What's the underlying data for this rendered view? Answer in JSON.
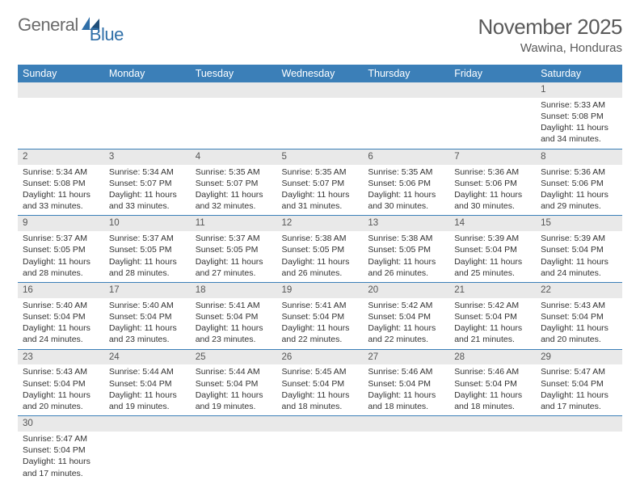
{
  "logo": {
    "general": "General",
    "blue": "Blue"
  },
  "title": "November 2025",
  "subtitle": "Wawina, Honduras",
  "colors": {
    "header_bg": "#3b7fb8",
    "header_text": "#ffffff",
    "daynum_bg": "#e9e9e9",
    "border": "#3b7fb8",
    "title_color": "#5a5a5a",
    "logo_gray": "#6b6b6b",
    "logo_blue": "#2f6fa8"
  },
  "typography": {
    "title_fontsize": 26,
    "subtitle_fontsize": 15,
    "header_fontsize": 12.5,
    "daynum_fontsize": 11.5,
    "cell_fontsize": 10.5
  },
  "weekdays": [
    "Sunday",
    "Monday",
    "Tuesday",
    "Wednesday",
    "Thursday",
    "Friday",
    "Saturday"
  ],
  "weeks": [
    [
      null,
      null,
      null,
      null,
      null,
      null,
      {
        "n": "1",
        "sunrise": "Sunrise: 5:33 AM",
        "sunset": "Sunset: 5:08 PM",
        "day1": "Daylight: 11 hours",
        "day2": "and 34 minutes."
      }
    ],
    [
      {
        "n": "2",
        "sunrise": "Sunrise: 5:34 AM",
        "sunset": "Sunset: 5:08 PM",
        "day1": "Daylight: 11 hours",
        "day2": "and 33 minutes."
      },
      {
        "n": "3",
        "sunrise": "Sunrise: 5:34 AM",
        "sunset": "Sunset: 5:07 PM",
        "day1": "Daylight: 11 hours",
        "day2": "and 33 minutes."
      },
      {
        "n": "4",
        "sunrise": "Sunrise: 5:35 AM",
        "sunset": "Sunset: 5:07 PM",
        "day1": "Daylight: 11 hours",
        "day2": "and 32 minutes."
      },
      {
        "n": "5",
        "sunrise": "Sunrise: 5:35 AM",
        "sunset": "Sunset: 5:07 PM",
        "day1": "Daylight: 11 hours",
        "day2": "and 31 minutes."
      },
      {
        "n": "6",
        "sunrise": "Sunrise: 5:35 AM",
        "sunset": "Sunset: 5:06 PM",
        "day1": "Daylight: 11 hours",
        "day2": "and 30 minutes."
      },
      {
        "n": "7",
        "sunrise": "Sunrise: 5:36 AM",
        "sunset": "Sunset: 5:06 PM",
        "day1": "Daylight: 11 hours",
        "day2": "and 30 minutes."
      },
      {
        "n": "8",
        "sunrise": "Sunrise: 5:36 AM",
        "sunset": "Sunset: 5:06 PM",
        "day1": "Daylight: 11 hours",
        "day2": "and 29 minutes."
      }
    ],
    [
      {
        "n": "9",
        "sunrise": "Sunrise: 5:37 AM",
        "sunset": "Sunset: 5:05 PM",
        "day1": "Daylight: 11 hours",
        "day2": "and 28 minutes."
      },
      {
        "n": "10",
        "sunrise": "Sunrise: 5:37 AM",
        "sunset": "Sunset: 5:05 PM",
        "day1": "Daylight: 11 hours",
        "day2": "and 28 minutes."
      },
      {
        "n": "11",
        "sunrise": "Sunrise: 5:37 AM",
        "sunset": "Sunset: 5:05 PM",
        "day1": "Daylight: 11 hours",
        "day2": "and 27 minutes."
      },
      {
        "n": "12",
        "sunrise": "Sunrise: 5:38 AM",
        "sunset": "Sunset: 5:05 PM",
        "day1": "Daylight: 11 hours",
        "day2": "and 26 minutes."
      },
      {
        "n": "13",
        "sunrise": "Sunrise: 5:38 AM",
        "sunset": "Sunset: 5:05 PM",
        "day1": "Daylight: 11 hours",
        "day2": "and 26 minutes."
      },
      {
        "n": "14",
        "sunrise": "Sunrise: 5:39 AM",
        "sunset": "Sunset: 5:04 PM",
        "day1": "Daylight: 11 hours",
        "day2": "and 25 minutes."
      },
      {
        "n": "15",
        "sunrise": "Sunrise: 5:39 AM",
        "sunset": "Sunset: 5:04 PM",
        "day1": "Daylight: 11 hours",
        "day2": "and 24 minutes."
      }
    ],
    [
      {
        "n": "16",
        "sunrise": "Sunrise: 5:40 AM",
        "sunset": "Sunset: 5:04 PM",
        "day1": "Daylight: 11 hours",
        "day2": "and 24 minutes."
      },
      {
        "n": "17",
        "sunrise": "Sunrise: 5:40 AM",
        "sunset": "Sunset: 5:04 PM",
        "day1": "Daylight: 11 hours",
        "day2": "and 23 minutes."
      },
      {
        "n": "18",
        "sunrise": "Sunrise: 5:41 AM",
        "sunset": "Sunset: 5:04 PM",
        "day1": "Daylight: 11 hours",
        "day2": "and 23 minutes."
      },
      {
        "n": "19",
        "sunrise": "Sunrise: 5:41 AM",
        "sunset": "Sunset: 5:04 PM",
        "day1": "Daylight: 11 hours",
        "day2": "and 22 minutes."
      },
      {
        "n": "20",
        "sunrise": "Sunrise: 5:42 AM",
        "sunset": "Sunset: 5:04 PM",
        "day1": "Daylight: 11 hours",
        "day2": "and 22 minutes."
      },
      {
        "n": "21",
        "sunrise": "Sunrise: 5:42 AM",
        "sunset": "Sunset: 5:04 PM",
        "day1": "Daylight: 11 hours",
        "day2": "and 21 minutes."
      },
      {
        "n": "22",
        "sunrise": "Sunrise: 5:43 AM",
        "sunset": "Sunset: 5:04 PM",
        "day1": "Daylight: 11 hours",
        "day2": "and 20 minutes."
      }
    ],
    [
      {
        "n": "23",
        "sunrise": "Sunrise: 5:43 AM",
        "sunset": "Sunset: 5:04 PM",
        "day1": "Daylight: 11 hours",
        "day2": "and 20 minutes."
      },
      {
        "n": "24",
        "sunrise": "Sunrise: 5:44 AM",
        "sunset": "Sunset: 5:04 PM",
        "day1": "Daylight: 11 hours",
        "day2": "and 19 minutes."
      },
      {
        "n": "25",
        "sunrise": "Sunrise: 5:44 AM",
        "sunset": "Sunset: 5:04 PM",
        "day1": "Daylight: 11 hours",
        "day2": "and 19 minutes."
      },
      {
        "n": "26",
        "sunrise": "Sunrise: 5:45 AM",
        "sunset": "Sunset: 5:04 PM",
        "day1": "Daylight: 11 hours",
        "day2": "and 18 minutes."
      },
      {
        "n": "27",
        "sunrise": "Sunrise: 5:46 AM",
        "sunset": "Sunset: 5:04 PM",
        "day1": "Daylight: 11 hours",
        "day2": "and 18 minutes."
      },
      {
        "n": "28",
        "sunrise": "Sunrise: 5:46 AM",
        "sunset": "Sunset: 5:04 PM",
        "day1": "Daylight: 11 hours",
        "day2": "and 18 minutes."
      },
      {
        "n": "29",
        "sunrise": "Sunrise: 5:47 AM",
        "sunset": "Sunset: 5:04 PM",
        "day1": "Daylight: 11 hours",
        "day2": "and 17 minutes."
      }
    ],
    [
      {
        "n": "30",
        "sunrise": "Sunrise: 5:47 AM",
        "sunset": "Sunset: 5:04 PM",
        "day1": "Daylight: 11 hours",
        "day2": "and 17 minutes."
      },
      null,
      null,
      null,
      null,
      null,
      null
    ]
  ]
}
